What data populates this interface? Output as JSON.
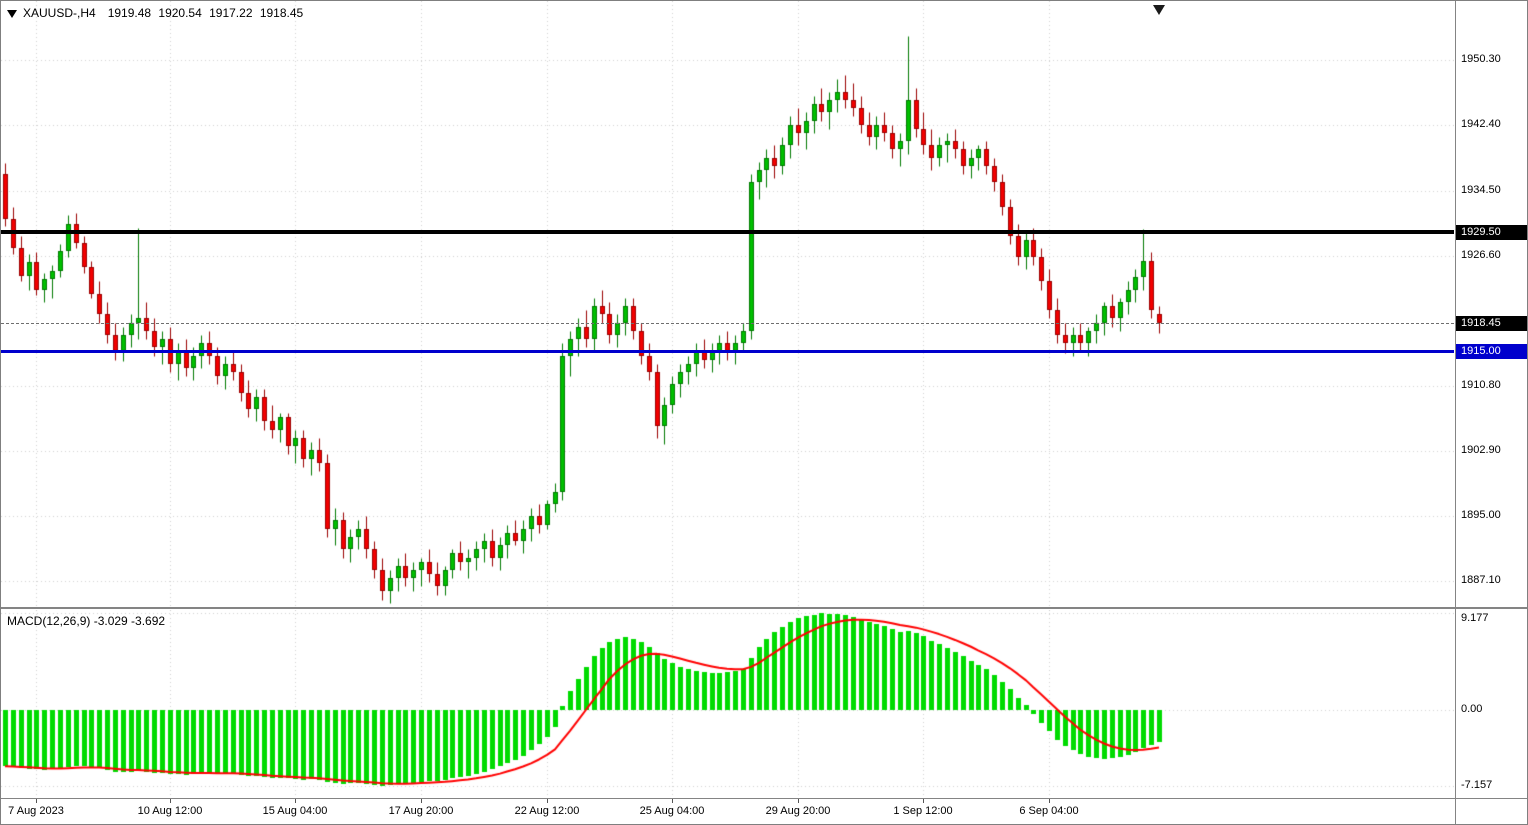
{
  "window": {
    "symbol_period": "XAUUSD-,H4",
    "ohlc_readout": "1919.48 1920.54 1917.22 1918.45"
  },
  "indicator": {
    "label": "MACD(12,26,9) -3.029 -3.692",
    "name": "MACD",
    "fast_ema": 12,
    "slow_ema": 26,
    "signal_period": 9,
    "current_macd": "-3.029",
    "current_signal": "-3.692"
  },
  "price_axis": {
    "grid_labels": [
      "1950.30",
      "1942.40",
      "1934.50",
      "1926.60",
      "1910.80",
      "1902.90",
      "1895.00",
      "1887.10"
    ],
    "current_price_label": "1918.45",
    "current_price_value": 1918.45,
    "hlines": [
      {
        "label": "1929.50",
        "value": 1929.5,
        "color": "#000000",
        "thickness": 4
      },
      {
        "label": "1915.00",
        "value": 1915.0,
        "color": "#0000cd",
        "thickness": 3
      }
    ]
  },
  "macd_axis": {
    "labels": [
      "9.177",
      "0.00",
      "-7.157"
    ],
    "values": [
      9.177,
      0,
      -7.157
    ]
  },
  "time_axis": {
    "labels": [
      "7 Aug 2023",
      "10 Aug 12:00",
      "15 Aug 04:00",
      "17 Aug 20:00",
      "22 Aug 12:00",
      "25 Aug 04:00",
      "29 Aug 20:00",
      "1 Sep 12:00",
      "6 Sep 04:00"
    ],
    "indices": [
      4,
      21,
      37,
      53,
      69,
      85,
      101,
      117,
      133
    ]
  },
  "chart_data": {
    "type": "candlestick",
    "symbol": "XAUUSD-",
    "timeframe": "H4",
    "title": "XAUUSD- H4 with MACD(12,26,9)",
    "price_range": [
      1884.0,
      1957.5
    ],
    "macd_range": [
      -8.3,
      9.5
    ],
    "colors": {
      "background": "#ffffff",
      "grid": "#d0d0d0",
      "up_fill": "#00bf00",
      "up_border": "#007a00",
      "down_fill": "#f20000",
      "down_border": "#9b0000",
      "macd_bar": "#00db00",
      "signal_line": "#ff0000",
      "hline_black": "#000000",
      "hline_blue": "#0000cd"
    },
    "ohlc": [
      [
        1936.5,
        1937.8,
        1930.2,
        1931.0
      ],
      [
        1931.0,
        1932.5,
        1926.8,
        1927.5
      ],
      [
        1927.5,
        1929.0,
        1923.5,
        1924.2
      ],
      [
        1924.2,
        1926.8,
        1922.5,
        1925.8
      ],
      [
        1925.8,
        1927.0,
        1921.8,
        1922.5
      ],
      [
        1922.5,
        1924.5,
        1921.0,
        1923.8
      ],
      [
        1923.8,
        1925.5,
        1921.5,
        1924.8
      ],
      [
        1924.8,
        1928.0,
        1924.0,
        1927.2
      ],
      [
        1927.2,
        1931.5,
        1926.5,
        1930.5
      ],
      [
        1930.5,
        1931.8,
        1927.5,
        1928.2
      ],
      [
        1928.2,
        1929.0,
        1924.5,
        1925.2
      ],
      [
        1925.2,
        1926.0,
        1921.5,
        1922.0
      ],
      [
        1922.0,
        1923.5,
        1918.5,
        1919.5
      ],
      [
        1919.5,
        1921.0,
        1916.0,
        1917.0
      ],
      [
        1917.0,
        1918.5,
        1914.0,
        1915.0
      ],
      [
        1915.0,
        1918.0,
        1913.8,
        1917.0
      ],
      [
        1917.0,
        1919.5,
        1915.5,
        1918.5
      ],
      [
        1918.5,
        1930.0,
        1916.5,
        1919.0
      ],
      [
        1919.0,
        1921.0,
        1916.5,
        1917.5
      ],
      [
        1917.5,
        1919.0,
        1914.5,
        1915.5
      ],
      [
        1915.5,
        1917.5,
        1913.5,
        1916.5
      ],
      [
        1916.5,
        1918.0,
        1912.5,
        1913.5
      ],
      [
        1913.5,
        1916.0,
        1911.5,
        1915.0
      ],
      [
        1915.0,
        1916.5,
        1912.0,
        1913.0
      ],
      [
        1913.0,
        1915.5,
        1911.5,
        1914.5
      ],
      [
        1914.5,
        1917.0,
        1913.0,
        1916.0
      ],
      [
        1916.0,
        1917.5,
        1913.5,
        1914.5
      ],
      [
        1914.5,
        1915.5,
        1911.0,
        1912.0
      ],
      [
        1912.0,
        1914.5,
        1910.5,
        1913.5
      ],
      [
        1913.5,
        1915.0,
        1911.5,
        1912.5
      ],
      [
        1912.5,
        1913.5,
        1909.0,
        1910.0
      ],
      [
        1910.0,
        1911.5,
        1907.0,
        1908.0
      ],
      [
        1908.0,
        1910.5,
        1906.5,
        1909.5
      ],
      [
        1909.5,
        1910.5,
        1905.5,
        1906.5
      ],
      [
        1906.5,
        1908.5,
        1904.5,
        1905.5
      ],
      [
        1905.5,
        1907.5,
        1904.0,
        1907.0
      ],
      [
        1907.0,
        1907.5,
        1902.5,
        1903.5
      ],
      [
        1903.5,
        1905.5,
        1901.5,
        1904.5
      ],
      [
        1904.5,
        1905.5,
        1901.0,
        1902.0
      ],
      [
        1902.0,
        1904.0,
        1900.0,
        1903.0
      ],
      [
        1903.0,
        1904.5,
        1900.5,
        1901.5
      ],
      [
        1901.5,
        1902.5,
        1892.5,
        1893.5
      ],
      [
        1893.5,
        1896.0,
        1891.5,
        1894.5
      ],
      [
        1894.5,
        1895.5,
        1890.0,
        1891.0
      ],
      [
        1891.0,
        1893.5,
        1889.5,
        1892.5
      ],
      [
        1892.5,
        1894.5,
        1891.0,
        1893.5
      ],
      [
        1893.5,
        1895.0,
        1890.0,
        1891.0
      ],
      [
        1891.0,
        1892.0,
        1887.5,
        1888.5
      ],
      [
        1888.5,
        1890.0,
        1884.8,
        1886.0
      ],
      [
        1886.0,
        1888.5,
        1884.5,
        1887.5
      ],
      [
        1887.5,
        1890.0,
        1886.0,
        1889.0
      ],
      [
        1889.0,
        1890.5,
        1886.5,
        1887.5
      ],
      [
        1887.5,
        1889.5,
        1886.0,
        1888.5
      ],
      [
        1888.5,
        1890.0,
        1886.5,
        1889.5
      ],
      [
        1889.5,
        1891.0,
        1887.0,
        1888.0
      ],
      [
        1888.0,
        1889.5,
        1885.5,
        1886.5
      ],
      [
        1886.5,
        1889.0,
        1885.5,
        1888.5
      ],
      [
        1888.5,
        1891.0,
        1887.5,
        1890.5
      ],
      [
        1890.5,
        1892.0,
        1888.5,
        1889.5
      ],
      [
        1889.5,
        1891.0,
        1887.5,
        1890.0
      ],
      [
        1890.0,
        1892.0,
        1888.5,
        1891.0
      ],
      [
        1891.0,
        1893.0,
        1889.5,
        1892.0
      ],
      [
        1892.0,
        1893.5,
        1889.0,
        1890.0
      ],
      [
        1890.0,
        1892.5,
        1888.5,
        1891.5
      ],
      [
        1891.5,
        1894.0,
        1890.0,
        1893.0
      ],
      [
        1893.0,
        1894.5,
        1891.5,
        1892.0
      ],
      [
        1892.0,
        1894.5,
        1890.5,
        1893.5
      ],
      [
        1893.5,
        1896.0,
        1892.0,
        1895.0
      ],
      [
        1895.0,
        1896.5,
        1893.0,
        1894.0
      ],
      [
        1894.0,
        1897.0,
        1893.5,
        1896.5
      ],
      [
        1896.5,
        1899.0,
        1895.5,
        1898.0
      ],
      [
        1898.0,
        1916.0,
        1897.0,
        1914.5
      ],
      [
        1914.5,
        1917.5,
        1912.0,
        1916.5
      ],
      [
        1916.5,
        1919.0,
        1914.5,
        1918.0
      ],
      [
        1918.0,
        1920.0,
        1915.5,
        1916.5
      ],
      [
        1916.5,
        1921.5,
        1915.0,
        1920.5
      ],
      [
        1920.5,
        1922.5,
        1918.5,
        1919.5
      ],
      [
        1919.5,
        1921.0,
        1916.0,
        1917.0
      ],
      [
        1917.0,
        1919.5,
        1915.5,
        1918.5
      ],
      [
        1918.5,
        1921.5,
        1917.0,
        1920.5
      ],
      [
        1920.5,
        1921.5,
        1916.5,
        1917.5
      ],
      [
        1917.5,
        1918.5,
        1913.5,
        1914.5
      ],
      [
        1914.5,
        1916.0,
        1911.5,
        1912.5
      ],
      [
        1912.5,
        1913.5,
        1904.5,
        1906.0
      ],
      [
        1906.0,
        1909.5,
        1903.8,
        1908.5
      ],
      [
        1908.5,
        1912.0,
        1907.5,
        1911.0
      ],
      [
        1911.0,
        1913.5,
        1909.5,
        1912.5
      ],
      [
        1912.5,
        1914.5,
        1911.0,
        1913.5
      ],
      [
        1913.5,
        1916.0,
        1912.0,
        1915.0
      ],
      [
        1915.0,
        1916.5,
        1913.0,
        1914.0
      ],
      [
        1914.0,
        1916.0,
        1912.5,
        1915.0
      ],
      [
        1915.0,
        1917.0,
        1913.5,
        1916.0
      ],
      [
        1916.0,
        1917.5,
        1914.0,
        1915.0
      ],
      [
        1915.0,
        1917.0,
        1913.5,
        1916.0
      ],
      [
        1916.0,
        1918.5,
        1915.0,
        1917.5
      ],
      [
        1917.5,
        1936.5,
        1916.5,
        1935.5
      ],
      [
        1935.5,
        1938.0,
        1933.5,
        1937.0
      ],
      [
        1937.0,
        1939.5,
        1935.0,
        1938.5
      ],
      [
        1938.5,
        1940.0,
        1936.0,
        1937.5
      ],
      [
        1937.5,
        1941.0,
        1936.5,
        1940.0
      ],
      [
        1940.0,
        1943.5,
        1938.5,
        1942.5
      ],
      [
        1942.5,
        1944.5,
        1940.0,
        1941.5
      ],
      [
        1941.5,
        1944.0,
        1939.5,
        1943.0
      ],
      [
        1943.0,
        1946.0,
        1941.5,
        1945.0
      ],
      [
        1945.0,
        1947.0,
        1943.0,
        1944.0
      ],
      [
        1944.0,
        1946.5,
        1942.0,
        1945.5
      ],
      [
        1945.5,
        1948.0,
        1944.0,
        1946.5
      ],
      [
        1946.5,
        1948.5,
        1944.5,
        1945.5
      ],
      [
        1945.5,
        1947.5,
        1943.5,
        1944.5
      ],
      [
        1944.5,
        1946.0,
        1941.5,
        1942.5
      ],
      [
        1942.5,
        1944.0,
        1940.0,
        1941.0
      ],
      [
        1941.0,
        1943.5,
        1939.5,
        1942.5
      ],
      [
        1942.5,
        1944.0,
        1940.5,
        1941.5
      ],
      [
        1941.5,
        1942.5,
        1938.5,
        1939.5
      ],
      [
        1939.5,
        1941.5,
        1937.5,
        1940.5
      ],
      [
        1940.5,
        1953.3,
        1939.0,
        1945.5
      ],
      [
        1945.5,
        1947.0,
        1941.0,
        1942.0
      ],
      [
        1942.0,
        1944.0,
        1939.0,
        1940.0
      ],
      [
        1940.0,
        1942.0,
        1937.0,
        1938.5
      ],
      [
        1938.5,
        1941.0,
        1937.5,
        1940.0
      ],
      [
        1940.0,
        1941.5,
        1938.0,
        1940.5
      ],
      [
        1940.5,
        1942.0,
        1938.5,
        1939.5
      ],
      [
        1939.5,
        1940.5,
        1936.5,
        1937.5
      ],
      [
        1937.5,
        1939.5,
        1936.0,
        1938.5
      ],
      [
        1938.5,
        1940.0,
        1937.0,
        1939.5
      ],
      [
        1939.5,
        1940.5,
        1936.5,
        1937.5
      ],
      [
        1937.5,
        1938.5,
        1934.5,
        1935.5
      ],
      [
        1935.5,
        1936.5,
        1931.5,
        1932.5
      ],
      [
        1932.5,
        1933.5,
        1928.0,
        1929.0
      ],
      [
        1929.0,
        1930.5,
        1925.5,
        1926.5
      ],
      [
        1926.5,
        1929.5,
        1925.0,
        1928.5
      ],
      [
        1928.5,
        1930.0,
        1925.5,
        1926.5
      ],
      [
        1926.5,
        1927.5,
        1922.5,
        1923.5
      ],
      [
        1923.5,
        1925.0,
        1919.0,
        1920.0
      ],
      [
        1920.0,
        1921.5,
        1916.0,
        1917.0
      ],
      [
        1917.0,
        1918.5,
        1914.8,
        1916.0
      ],
      [
        1916.0,
        1918.0,
        1914.5,
        1917.0
      ],
      [
        1917.0,
        1918.5,
        1915.0,
        1916.0
      ],
      [
        1916.0,
        1918.0,
        1914.5,
        1917.5
      ],
      [
        1917.5,
        1919.5,
        1916.0,
        1918.5
      ],
      [
        1918.5,
        1921.0,
        1917.0,
        1920.5
      ],
      [
        1920.5,
        1922.0,
        1918.0,
        1919.0
      ],
      [
        1919.0,
        1921.5,
        1917.5,
        1921.0
      ],
      [
        1921.0,
        1923.5,
        1919.5,
        1922.5
      ],
      [
        1922.5,
        1925.0,
        1921.0,
        1924.0
      ],
      [
        1924.0,
        1929.8,
        1922.5,
        1926.0
      ],
      [
        1926.0,
        1927.0,
        1919.0,
        1920.0
      ],
      [
        1919.48,
        1920.54,
        1917.22,
        1918.45
      ]
    ],
    "macd_histogram": [
      -5.3,
      -5.4,
      -5.5,
      -5.55,
      -5.6,
      -5.65,
      -5.6,
      -5.5,
      -5.35,
      -5.25,
      -5.3,
      -5.4,
      -5.5,
      -5.65,
      -5.8,
      -5.85,
      -5.8,
      -5.75,
      -5.8,
      -5.9,
      -5.95,
      -6.05,
      -6.0,
      -6.1,
      -6.05,
      -5.95,
      -5.9,
      -6.0,
      -5.95,
      -6.0,
      -6.1,
      -6.2,
      -6.25,
      -6.35,
      -6.45,
      -6.4,
      -6.45,
      -6.5,
      -6.55,
      -6.5,
      -6.6,
      -6.8,
      -6.85,
      -6.95,
      -6.9,
      -6.85,
      -6.95,
      -7.05,
      -7.157,
      -7.1,
      -7.0,
      -6.9,
      -6.85,
      -6.75,
      -6.7,
      -6.65,
      -6.6,
      -6.45,
      -6.3,
      -6.2,
      -6.0,
      -5.8,
      -5.6,
      -5.3,
      -5.0,
      -4.7,
      -4.3,
      -3.8,
      -3.2,
      -2.5,
      -1.6,
      0.4,
      1.8,
      3.0,
      4.1,
      5.1,
      5.9,
      6.5,
      6.8,
      6.9,
      6.8,
      6.5,
      6.0,
      5.4,
      4.9,
      4.5,
      4.1,
      3.9,
      3.7,
      3.6,
      3.5,
      3.5,
      3.6,
      3.7,
      3.9,
      5.0,
      6.0,
      6.8,
      7.4,
      7.9,
      8.4,
      8.7,
      8.9,
      9.05,
      9.177,
      9.15,
      9.1,
      9.0,
      8.85,
      8.65,
      8.4,
      8.2,
      8.0,
      7.7,
      7.4,
      7.5,
      7.3,
      7.0,
      6.6,
      6.3,
      5.9,
      5.5,
      5.1,
      4.7,
      4.3,
      3.9,
      3.3,
      2.7,
      2.0,
      1.2,
      0.5,
      -0.3,
      -1.2,
      -2.0,
      -2.8,
      -3.4,
      -3.8,
      -4.1,
      -4.4,
      -4.55,
      -4.6,
      -4.55,
      -4.4,
      -4.2,
      -3.9,
      -3.6,
      -3.3,
      -3.029
    ]
  }
}
